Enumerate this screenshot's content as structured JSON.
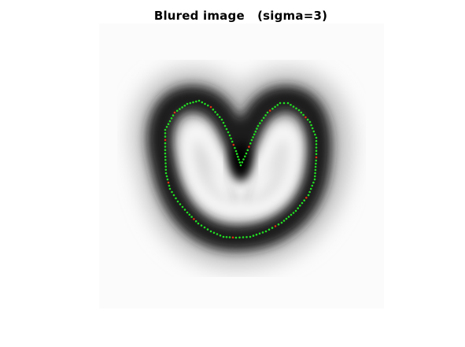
{
  "figure": {
    "title": "Blured image   (sigma=3)",
    "background_color": "#ffffff"
  },
  "image": {
    "description_kind": "blurred grayscale U-shaped blob",
    "ink_color": "#000000",
    "inner_color": "#f4f4f4"
  },
  "contour": {
    "point_color": "#22dd22",
    "marker_color": "#dd3311"
  }
}
